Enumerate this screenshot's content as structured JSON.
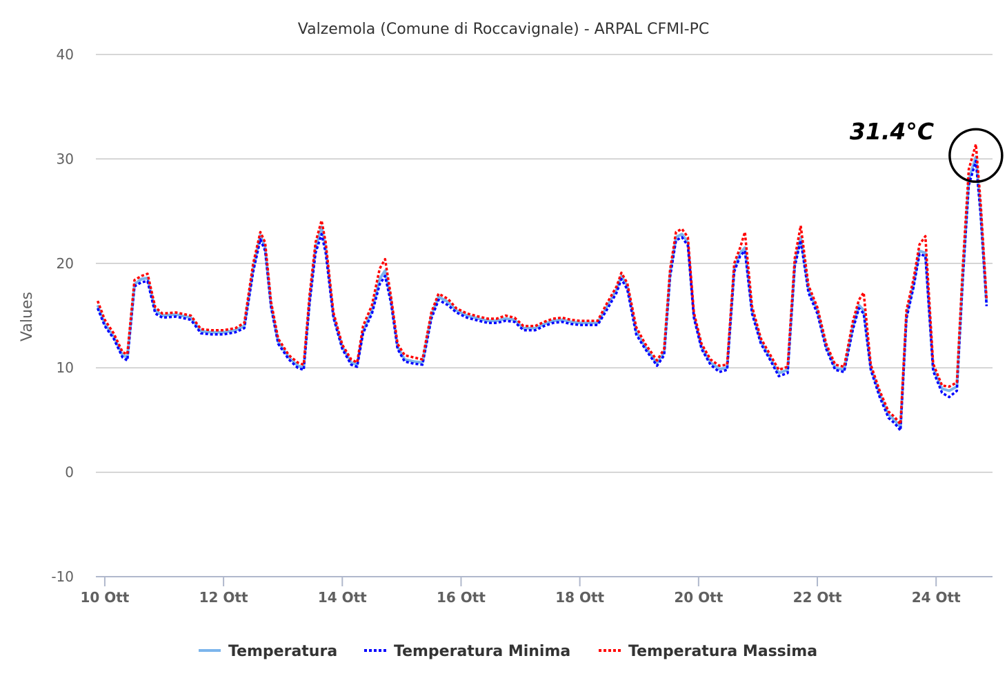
{
  "chart_data": {
    "type": "line",
    "title": "Valzemola (Comune di Roccavignale) - ARPAL CFMI-PC",
    "ylabel": "Values",
    "xlabel": "",
    "ylim": [
      -10,
      40
    ],
    "yticks": [
      "40",
      "30",
      "20",
      "10",
      "0",
      "-10"
    ],
    "ytick_values": [
      40,
      30,
      20,
      10,
      0,
      -10
    ],
    "xlim": [
      9.85,
      24.95
    ],
    "xticks": [
      "10 Ott",
      "12 Ott",
      "14 Ott",
      "16 Ott",
      "18 Ott",
      "20 Ott",
      "22 Ott",
      "24 Ott"
    ],
    "xtick_values": [
      10,
      12,
      14,
      16,
      18,
      20,
      22,
      24
    ],
    "grid": true,
    "legend_position": "bottom-center",
    "annotation": {
      "text": "31.4°C",
      "x": 24.67,
      "y": 30.2
    },
    "series": [
      {
        "name": "Temperatura",
        "color": "#7cb5ec",
        "style": "solid",
        "x": [
          9.88,
          10.0,
          10.15,
          10.3,
          10.38,
          10.5,
          10.62,
          10.72,
          10.85,
          10.97,
          11.2,
          11.45,
          11.62,
          11.8,
          12.0,
          12.2,
          12.35,
          12.5,
          12.62,
          12.7,
          12.8,
          12.92,
          13.1,
          13.25,
          13.35,
          13.45,
          13.55,
          13.65,
          13.72,
          13.85,
          14.0,
          14.15,
          14.25,
          14.35,
          14.5,
          14.63,
          14.72,
          14.82,
          14.93,
          15.05,
          15.2,
          15.35,
          15.5,
          15.62,
          15.78,
          15.92,
          16.1,
          16.3,
          16.45,
          16.6,
          16.75,
          16.9,
          17.05,
          17.25,
          17.4,
          17.55,
          17.7,
          17.85,
          18.0,
          18.15,
          18.3,
          18.45,
          18.62,
          18.7,
          18.8,
          18.95,
          19.1,
          19.3,
          19.42,
          19.52,
          19.62,
          19.72,
          19.82,
          19.92,
          20.05,
          20.2,
          20.35,
          20.48,
          20.6,
          20.7,
          20.78,
          20.9,
          21.05,
          21.2,
          21.35,
          21.5,
          21.62,
          21.72,
          21.85,
          22.0,
          22.15,
          22.3,
          22.45,
          22.6,
          22.7,
          22.78,
          22.9,
          23.05,
          23.2,
          23.3,
          23.4,
          23.5,
          23.62,
          23.72,
          23.82,
          23.95,
          24.1,
          24.22,
          24.35,
          24.45,
          24.55,
          24.67,
          24.75,
          24.85
        ],
        "values": [
          16.0,
          14.2,
          13.0,
          11.2,
          11.0,
          18.0,
          18.5,
          18.6,
          15.5,
          15.0,
          15.1,
          14.8,
          13.5,
          13.4,
          13.4,
          13.6,
          14.0,
          19.5,
          22.7,
          21.5,
          16.0,
          12.5,
          11.0,
          10.2,
          10.0,
          16.5,
          21.5,
          23.5,
          21.5,
          15.0,
          12.0,
          10.5,
          10.3,
          13.5,
          15.5,
          18.5,
          19.3,
          16.5,
          12.0,
          10.8,
          10.6,
          10.5,
          15.0,
          16.8,
          16.3,
          15.5,
          15.0,
          14.7,
          14.5,
          14.5,
          14.7,
          14.6,
          13.8,
          13.8,
          14.2,
          14.5,
          14.6,
          14.4,
          14.3,
          14.3,
          14.3,
          15.8,
          17.5,
          18.8,
          17.8,
          13.5,
          12.0,
          10.4,
          11.5,
          19.0,
          22.5,
          22.8,
          22.0,
          15.0,
          12.0,
          10.5,
          9.9,
          10.0,
          19.5,
          21.0,
          21.5,
          15.5,
          12.5,
          11.0,
          9.5,
          9.8,
          20.0,
          22.5,
          17.5,
          15.5,
          12.0,
          10.0,
          9.8,
          14.0,
          16.0,
          15.5,
          10.0,
          7.5,
          5.5,
          5.0,
          4.3,
          15.0,
          18.0,
          21.2,
          21.0,
          10.0,
          8.0,
          7.8,
          8.2,
          19.0,
          28.0,
          30.2,
          25.0,
          16.2
        ]
      },
      {
        "name": "Temperatura Minima",
        "color": "#0000ff",
        "style": "dotted",
        "x": [
          9.88,
          10.0,
          10.15,
          10.3,
          10.38,
          10.5,
          10.62,
          10.72,
          10.85,
          10.97,
          11.2,
          11.45,
          11.62,
          11.8,
          12.0,
          12.2,
          12.35,
          12.5,
          12.62,
          12.7,
          12.8,
          12.92,
          13.1,
          13.25,
          13.35,
          13.45,
          13.55,
          13.65,
          13.72,
          13.85,
          14.0,
          14.15,
          14.25,
          14.35,
          14.5,
          14.63,
          14.72,
          14.82,
          14.93,
          15.05,
          15.2,
          15.35,
          15.5,
          15.62,
          15.78,
          15.92,
          16.1,
          16.3,
          16.45,
          16.6,
          16.75,
          16.9,
          17.05,
          17.25,
          17.4,
          17.55,
          17.7,
          17.85,
          18.0,
          18.15,
          18.3,
          18.45,
          18.62,
          18.7,
          18.8,
          18.95,
          19.1,
          19.3,
          19.42,
          19.52,
          19.62,
          19.72,
          19.82,
          19.92,
          20.05,
          20.2,
          20.35,
          20.48,
          20.6,
          20.7,
          20.78,
          20.9,
          21.05,
          21.2,
          21.35,
          21.5,
          21.62,
          21.72,
          21.85,
          22.0,
          22.15,
          22.3,
          22.45,
          22.6,
          22.7,
          22.78,
          22.9,
          23.05,
          23.2,
          23.3,
          23.4,
          23.5,
          23.62,
          23.72,
          23.82,
          23.95,
          24.1,
          24.22,
          24.35,
          24.45,
          24.55,
          24.67,
          24.75,
          24.85
        ],
        "values": [
          15.7,
          14.0,
          12.8,
          11.0,
          10.7,
          17.8,
          18.2,
          18.3,
          15.2,
          14.8,
          14.9,
          14.6,
          13.3,
          13.2,
          13.2,
          13.4,
          13.8,
          19.2,
          22.3,
          21.2,
          15.8,
          12.3,
          10.8,
          10.0,
          9.8,
          16.2,
          21.0,
          22.8,
          21.0,
          14.8,
          11.8,
          10.3,
          10.1,
          13.3,
          15.2,
          18.0,
          18.8,
          16.2,
          11.8,
          10.6,
          10.4,
          10.3,
          14.7,
          16.5,
          16.0,
          15.3,
          14.8,
          14.5,
          14.3,
          14.3,
          14.5,
          14.4,
          13.6,
          13.6,
          14.0,
          14.3,
          14.4,
          14.2,
          14.1,
          14.1,
          14.1,
          15.5,
          17.2,
          18.5,
          17.5,
          13.2,
          11.8,
          10.2,
          11.2,
          18.7,
          22.2,
          22.5,
          21.7,
          14.8,
          11.8,
          10.3,
          9.6,
          9.8,
          19.2,
          20.7,
          21.2,
          15.2,
          12.3,
          10.8,
          9.2,
          9.5,
          19.7,
          22.2,
          17.2,
          15.2,
          11.8,
          9.8,
          9.6,
          13.7,
          15.7,
          15.2,
          9.8,
          7.2,
          5.2,
          4.7,
          4.0,
          14.7,
          17.7,
          20.9,
          20.7,
          9.7,
          7.6,
          7.2,
          7.8,
          18.6,
          27.5,
          29.8,
          24.6,
          15.9
        ]
      },
      {
        "name": "Temperatura Massima",
        "color": "#ff0000",
        "style": "dotted",
        "x": [
          9.88,
          10.0,
          10.15,
          10.3,
          10.38,
          10.5,
          10.62,
          10.72,
          10.85,
          10.97,
          11.2,
          11.45,
          11.62,
          11.8,
          12.0,
          12.2,
          12.35,
          12.5,
          12.62,
          12.7,
          12.8,
          12.92,
          13.1,
          13.25,
          13.35,
          13.45,
          13.55,
          13.65,
          13.72,
          13.85,
          14.0,
          14.15,
          14.25,
          14.35,
          14.5,
          14.63,
          14.72,
          14.82,
          14.93,
          15.05,
          15.2,
          15.35,
          15.5,
          15.62,
          15.78,
          15.92,
          16.1,
          16.3,
          16.45,
          16.6,
          16.75,
          16.9,
          17.05,
          17.25,
          17.4,
          17.55,
          17.7,
          17.85,
          18.0,
          18.15,
          18.3,
          18.45,
          18.62,
          18.7,
          18.8,
          18.95,
          19.1,
          19.3,
          19.42,
          19.52,
          19.62,
          19.72,
          19.82,
          19.92,
          20.05,
          20.2,
          20.35,
          20.48,
          20.6,
          20.7,
          20.78,
          20.9,
          21.05,
          21.2,
          21.35,
          21.5,
          21.62,
          21.72,
          21.85,
          22.0,
          22.15,
          22.3,
          22.45,
          22.6,
          22.7,
          22.78,
          22.9,
          23.05,
          23.2,
          23.3,
          23.4,
          23.5,
          23.62,
          23.72,
          23.82,
          23.95,
          24.1,
          24.22,
          24.35,
          24.45,
          24.55,
          24.67,
          24.75,
          24.85
        ],
        "values": [
          16.4,
          14.6,
          13.3,
          11.5,
          11.3,
          18.4,
          18.8,
          19.0,
          15.8,
          15.2,
          15.3,
          15.0,
          13.7,
          13.6,
          13.6,
          13.8,
          14.3,
          20.0,
          23.0,
          22.0,
          16.3,
          12.8,
          11.2,
          10.5,
          10.3,
          17.0,
          22.0,
          24.1,
          22.0,
          15.3,
          12.2,
          10.8,
          10.5,
          14.0,
          16.0,
          19.5,
          20.4,
          16.8,
          12.3,
          11.2,
          11.0,
          10.8,
          15.3,
          17.1,
          16.6,
          15.7,
          15.2,
          14.9,
          14.7,
          14.7,
          15.0,
          14.8,
          14.0,
          14.0,
          14.4,
          14.7,
          14.8,
          14.6,
          14.5,
          14.5,
          14.5,
          16.1,
          17.8,
          19.1,
          18.1,
          13.9,
          12.3,
          10.7,
          11.8,
          19.4,
          23.0,
          23.3,
          22.5,
          15.3,
          12.3,
          10.8,
          10.2,
          10.3,
          20.0,
          21.5,
          23.0,
          15.9,
          12.8,
          11.3,
          9.8,
          10.1,
          20.5,
          23.6,
          17.9,
          15.8,
          12.3,
          10.3,
          10.1,
          14.5,
          16.5,
          17.2,
          10.3,
          7.8,
          5.8,
          5.3,
          4.6,
          15.5,
          18.5,
          21.8,
          22.6,
          10.4,
          8.3,
          8.2,
          8.6,
          19.8,
          29.0,
          31.4,
          25.8,
          16.6
        ]
      }
    ]
  }
}
